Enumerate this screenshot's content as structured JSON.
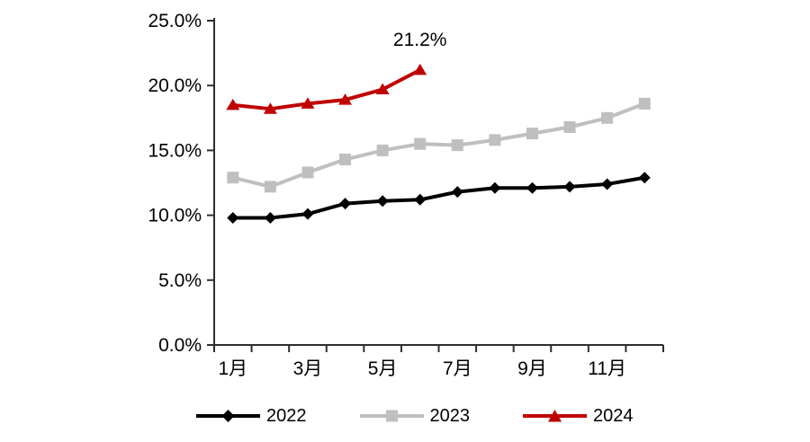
{
  "chart_data": {
    "type": "line",
    "title": "",
    "unit": "%",
    "x_axis": {
      "categories_count": 12,
      "shown_tick_labels": [
        {
          "month": 1,
          "label": "1月"
        },
        {
          "month": 3,
          "label": "3月"
        },
        {
          "month": 5,
          "label": "5月"
        },
        {
          "month": 7,
          "label": "7月"
        },
        {
          "month": 9,
          "label": "9月"
        },
        {
          "month": 11,
          "label": "11月"
        }
      ]
    },
    "y_axis": {
      "min": 0,
      "max": 25,
      "step": 5,
      "ticks": [
        {
          "value": 0,
          "label": "0.0%"
        },
        {
          "value": 5,
          "label": "5.0%"
        },
        {
          "value": 10,
          "label": "10.0%"
        },
        {
          "value": 15,
          "label": "15.0%"
        },
        {
          "value": 20,
          "label": "20.0%"
        },
        {
          "value": 25,
          "label": "25.0%"
        }
      ]
    },
    "series": [
      {
        "name": "2022",
        "color": "#000000",
        "marker": "diamond",
        "values": [
          9.8,
          9.8,
          10.1,
          10.9,
          11.1,
          11.2,
          11.8,
          12.1,
          12.1,
          12.2,
          12.4,
          12.9
        ]
      },
      {
        "name": "2023",
        "color": "#bfbfbf",
        "marker": "square",
        "values": [
          12.9,
          12.2,
          13.3,
          14.3,
          15.0,
          15.5,
          15.4,
          15.8,
          16.3,
          16.8,
          17.5,
          18.6
        ]
      },
      {
        "name": "2024",
        "color": "#c00000",
        "marker": "triangle",
        "values": [
          18.5,
          18.2,
          18.6,
          18.9,
          19.7,
          21.2
        ]
      }
    ],
    "annotation": {
      "text": "21.2%",
      "series": "2024",
      "month": 6,
      "value": 21.2
    },
    "legend_position": "bottom",
    "grid": "off",
    "axis_color": "#2e2e2e"
  }
}
